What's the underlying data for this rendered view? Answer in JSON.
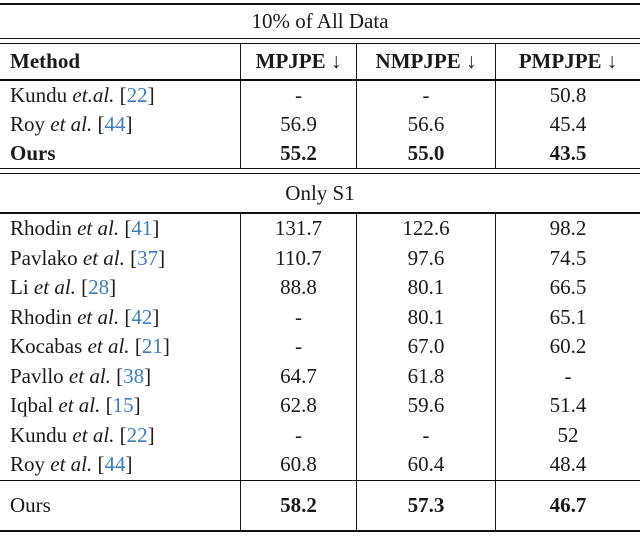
{
  "table": {
    "top_section_title": "10% of All Data",
    "columns": [
      {
        "label": "Method"
      },
      {
        "label": "MPJPE ↓"
      },
      {
        "label": "NMPJPE ↓"
      },
      {
        "label": "PMPJPE ↓"
      }
    ],
    "section1_rows": [
      {
        "name": "Kundu",
        "etal": " et.al. ",
        "lb": "[",
        "num": "22",
        "rb": "]",
        "vals": [
          "-",
          "-",
          "50.8"
        ]
      },
      {
        "name": "Roy",
        "etal": " et al. ",
        "lb": "[",
        "num": "44",
        "rb": "]",
        "vals": [
          "56.9",
          "56.6",
          "45.4"
        ]
      },
      {
        "name": "Ours",
        "vals": [
          "55.2",
          "55.0",
          "43.5"
        ]
      }
    ],
    "mid_section_title": "Only S1",
    "section2_rows": [
      {
        "name": "Rhodin",
        "etal": " et al. ",
        "lb": "[",
        "num": "41",
        "rb": "]",
        "vals": [
          "131.7",
          "122.6",
          "98.2"
        ]
      },
      {
        "name": "Pavlako",
        "etal": " et al. ",
        "lb": "[",
        "num": "37",
        "rb": "]",
        "vals": [
          "110.7",
          "97.6",
          "74.5"
        ]
      },
      {
        "name": "Li",
        "etal": " et al. ",
        "lb": "[",
        "num": "28",
        "rb": "]",
        "vals": [
          "88.8",
          "80.1",
          "66.5"
        ]
      },
      {
        "name": "Rhodin",
        "etal": " et al. ",
        "lb": "[",
        "num": "42",
        "rb": "]",
        "vals": [
          "-",
          "80.1",
          "65.1"
        ]
      },
      {
        "name": "Kocabas",
        "etal": " et al. ",
        "lb": "[",
        "num": "21",
        "rb": "]",
        "vals": [
          "-",
          "67.0",
          "60.2"
        ]
      },
      {
        "name": "Pavllo",
        "etal": " et al. ",
        "lb": "[",
        "num": "38",
        "rb": "]",
        "vals": [
          "64.7",
          "61.8",
          "-"
        ]
      },
      {
        "name": "Iqbal",
        "etal": " et al. ",
        "lb": "[",
        "num": "15",
        "rb": "]",
        "vals": [
          "62.8",
          "59.6",
          "51.4"
        ]
      },
      {
        "name": "Kundu",
        "etal": " et al. ",
        "lb": "[",
        "num": "22",
        "rb": "]",
        "vals": [
          "-",
          "-",
          "52"
        ]
      },
      {
        "name": "Roy",
        "etal": " et al. ",
        "lb": "[",
        "num": "44",
        "rb": "]",
        "vals": [
          "60.8",
          "60.4",
          "48.4"
        ]
      }
    ],
    "footer_row": {
      "name": "Ours",
      "vals": [
        "58.2",
        "57.3",
        "46.7"
      ]
    }
  },
  "colors": {
    "citation": "#3d7dc2",
    "text": "#1a1a1a"
  }
}
